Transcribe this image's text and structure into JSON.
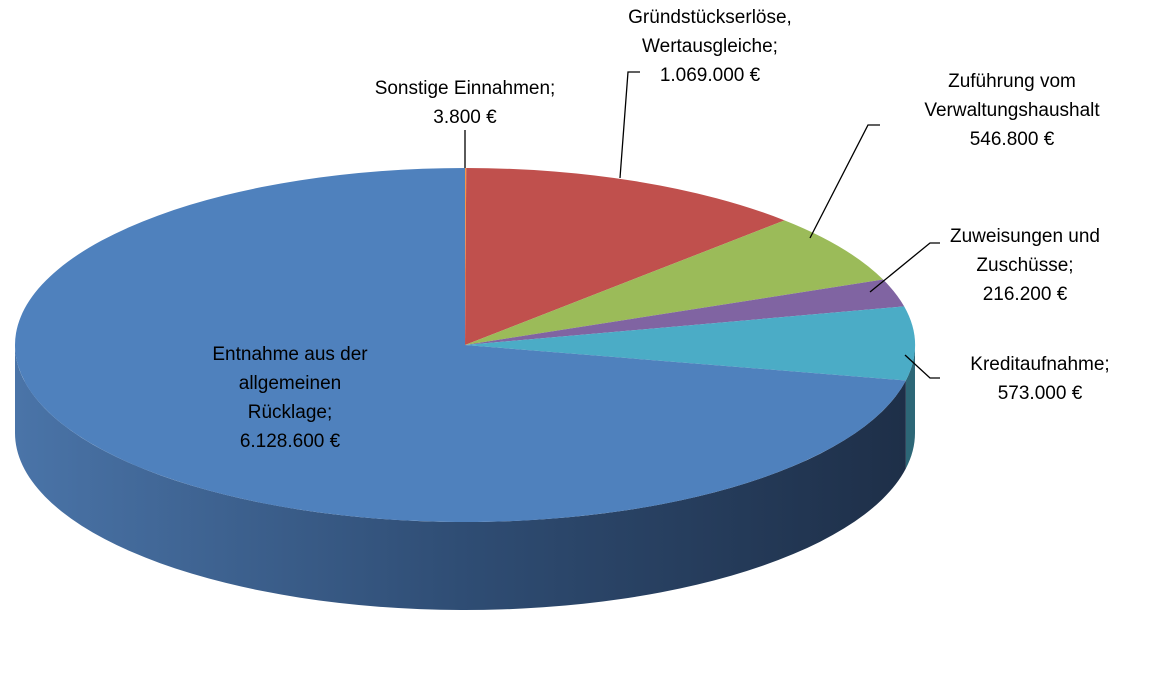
{
  "chart_data": {
    "type": "pie3d",
    "categories": [
      "Sonstige Einnahmen;",
      "Gründstückserlöse, Wertausgleiche;",
      "Zuführung vom Verwaltungshaushalt",
      "Zuweisungen und Zuschüsse;",
      "Kreditaufnahme;",
      "Entnahme aus der allgemeinen Rücklage;"
    ],
    "values": [
      3800,
      1069000,
      546800,
      216200,
      573000,
      6128600
    ],
    "value_labels": [
      "3.800 €",
      "1.069.000 €",
      "546.800 €",
      "216.200 €",
      "573.000 €",
      "6.128.600 €"
    ],
    "colors": [
      "#f79646",
      "#c0504d",
      "#9bbb59",
      "#8064a2",
      "#4bacc6",
      "#4f81bd"
    ]
  }
}
